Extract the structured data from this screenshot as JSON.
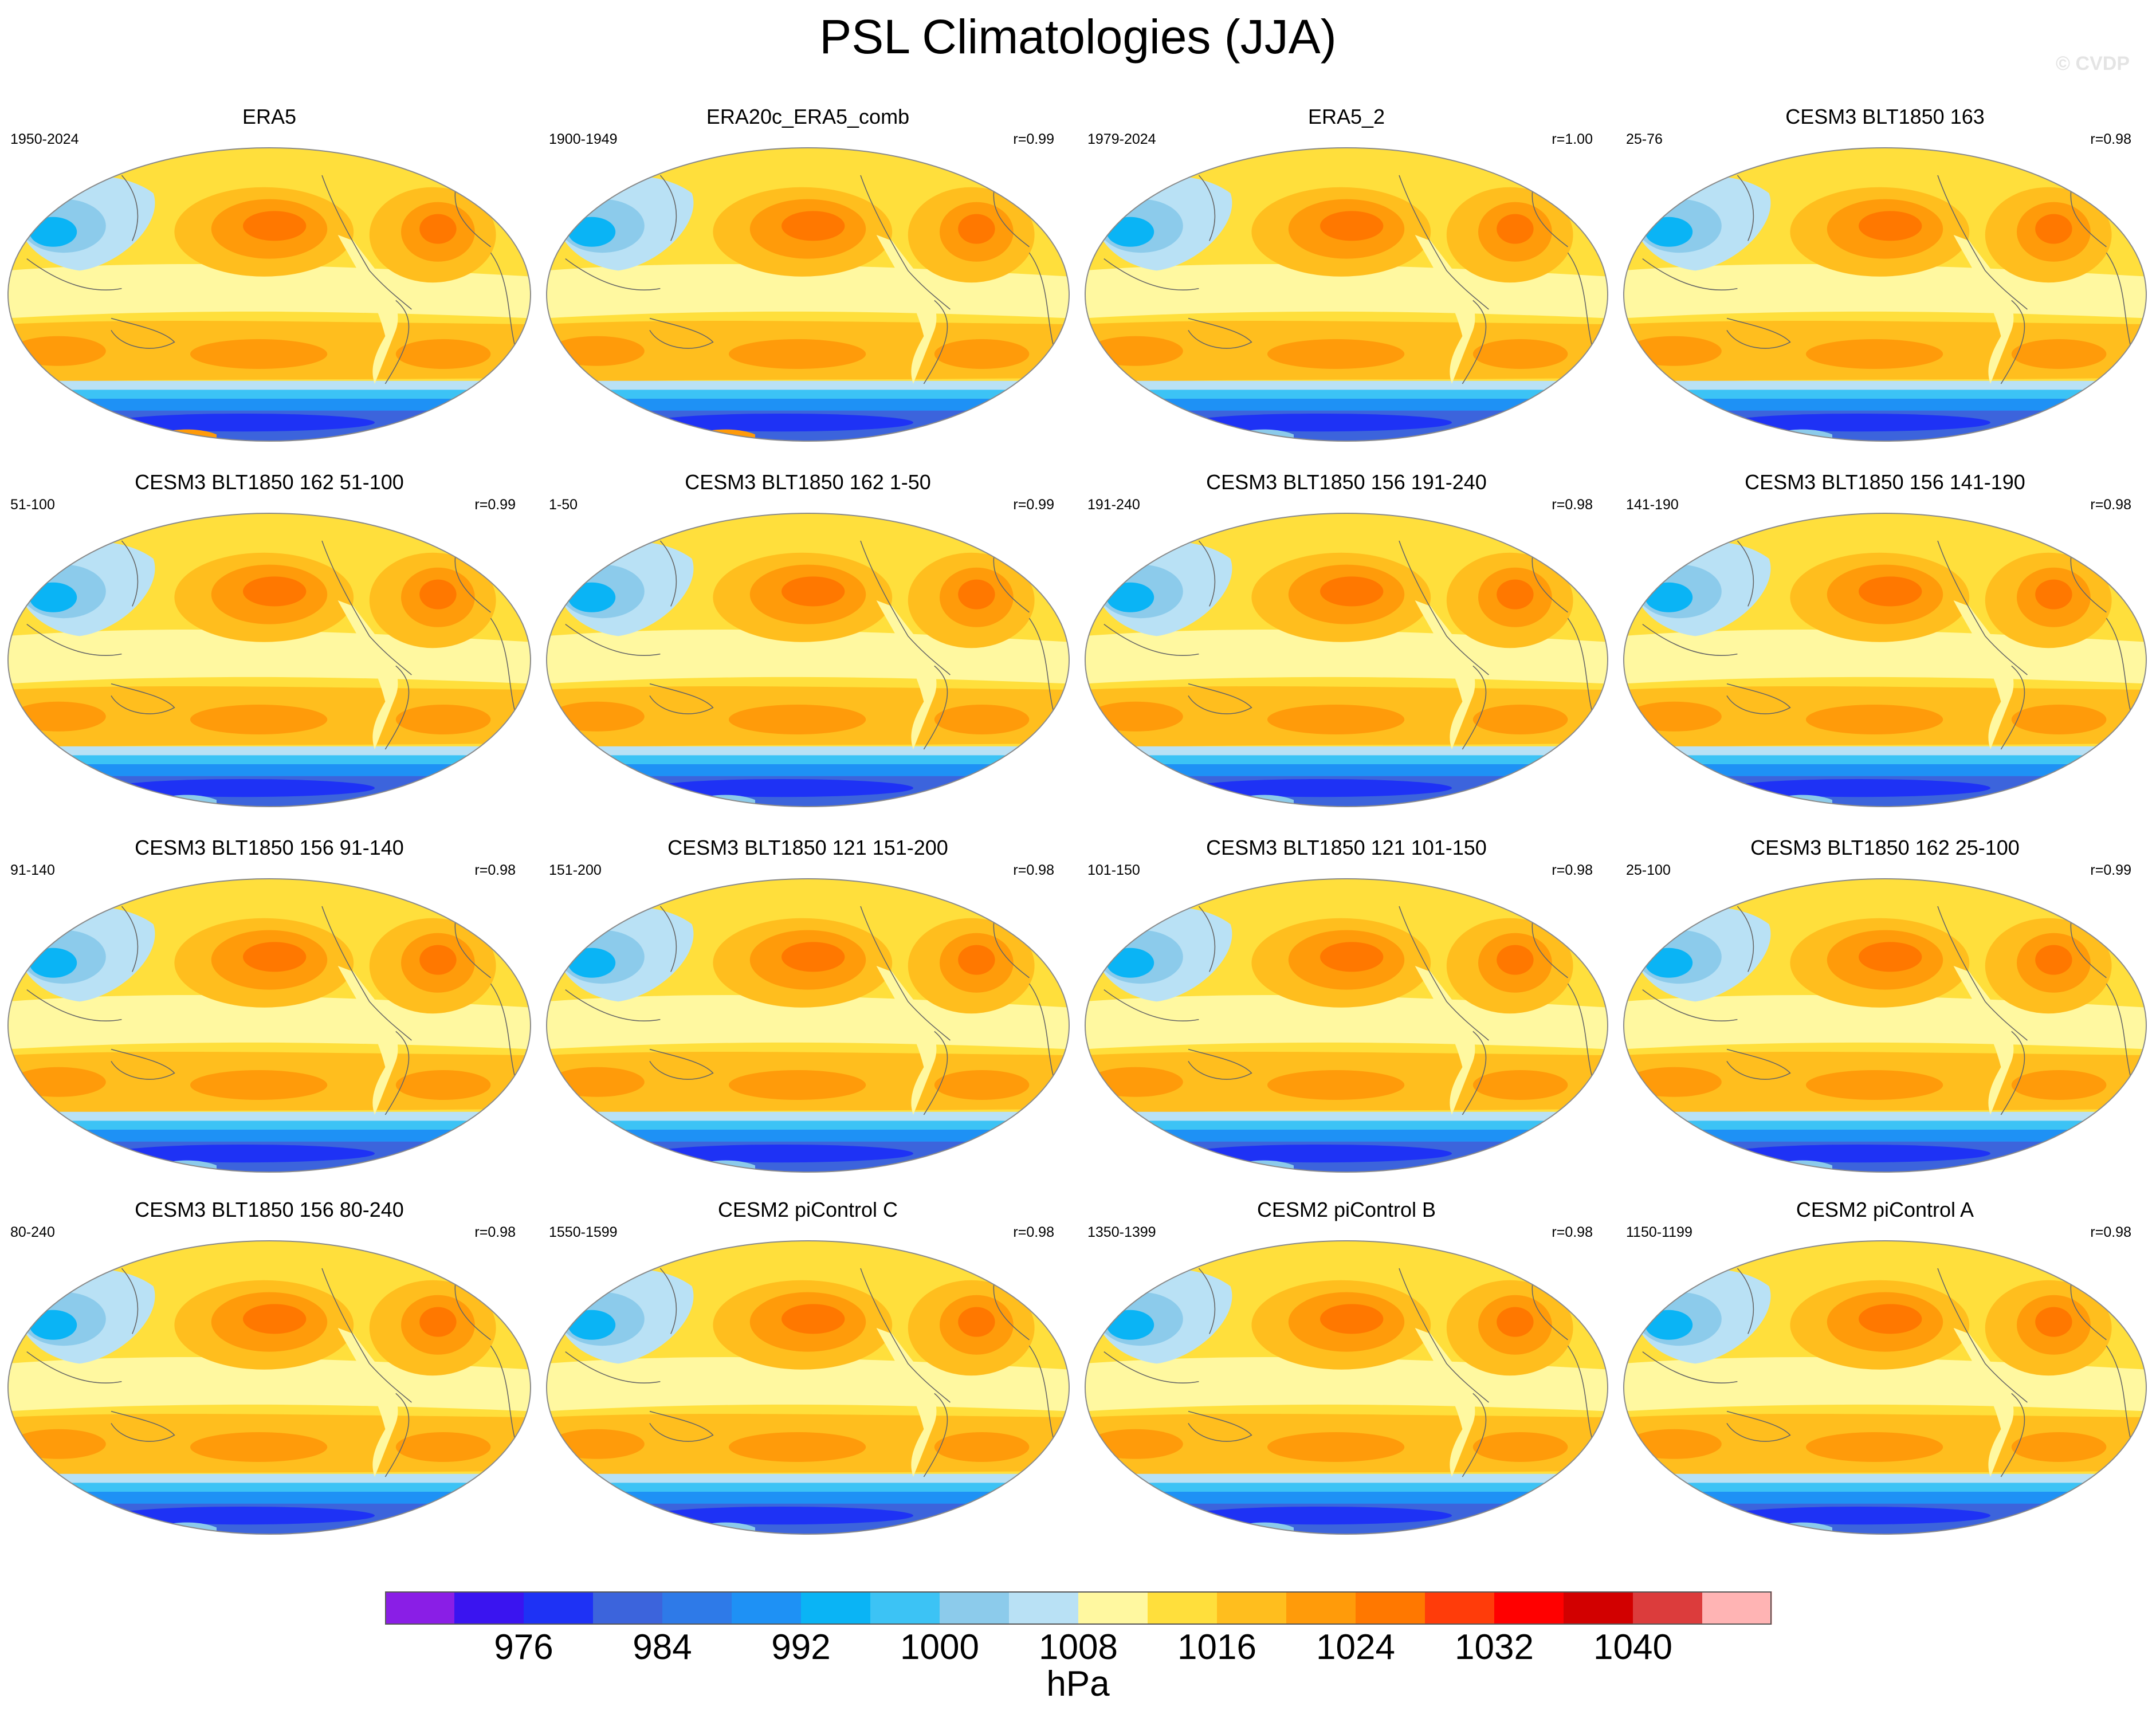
{
  "figure": {
    "title": "PSL Climatologies (JJA)",
    "watermark": "© CVDP",
    "units": "hPa",
    "season": "JJA",
    "variable": "PSL"
  },
  "colorbar": {
    "colors": [
      "#8a1ee6",
      "#3a14f0",
      "#1e32f5",
      "#3c64dc",
      "#2e7ae8",
      "#1e91f5",
      "#0ab4f5",
      "#3cc3f5",
      "#8ccbeb",
      "#b9e1f5",
      "#fff8a0",
      "#ffdf3c",
      "#ffbe1e",
      "#ff9b0a",
      "#ff7800",
      "#ff3c0a",
      "#ff0000",
      "#d20000",
      "#dc3c3c",
      "#ffb4b4"
    ],
    "levels": [
      972,
      976,
      980,
      984,
      988,
      992,
      996,
      1000,
      1004,
      1008,
      1012,
      1016,
      1020,
      1024,
      1028,
      1032,
      1036,
      1040,
      1044
    ],
    "tick_labels": [
      "976",
      "984",
      "992",
      "1000",
      "1008",
      "1016",
      "1024",
      "1032",
      "1040"
    ],
    "tick_values": [
      976,
      984,
      992,
      1000,
      1008,
      1016,
      1024,
      1032,
      1040
    ]
  },
  "panels": [
    {
      "title": "ERA5",
      "years": "1950-2024",
      "corr": ""
    },
    {
      "title": "ERA20c_ERA5_comb",
      "years": "1900-1949",
      "corr": "r=0.99"
    },
    {
      "title": "ERA5_2",
      "years": "1979-2024",
      "corr": "r=1.00"
    },
    {
      "title": "CESM3 BLT1850 163",
      "years": "25-76",
      "corr": "r=0.98"
    },
    {
      "title": "CESM3 BLT1850 162 51-100",
      "years": "51-100",
      "corr": "r=0.99"
    },
    {
      "title": "CESM3 BLT1850 162 1-50",
      "years": "1-50",
      "corr": "r=0.99"
    },
    {
      "title": "CESM3 BLT1850 156 191-240",
      "years": "191-240",
      "corr": "r=0.98"
    },
    {
      "title": "CESM3 BLT1850 156 141-190",
      "years": "141-190",
      "corr": "r=0.98"
    },
    {
      "title": "CESM3 BLT1850 156 91-140",
      "years": "91-140",
      "corr": "r=0.98"
    },
    {
      "title": "CESM3 BLT1850 121 151-200",
      "years": "151-200",
      "corr": "r=0.98"
    },
    {
      "title": "CESM3 BLT1850 121 101-150",
      "years": "101-150",
      "corr": "r=0.98"
    },
    {
      "title": "CESM3 BLT1850 162 25-100",
      "years": "25-100",
      "corr": "r=0.99"
    },
    {
      "title": "CESM3 BLT1850 156 80-240",
      "years": "80-240",
      "corr": "r=0.98"
    },
    {
      "title": "CESM2 piControl C",
      "years": "1550-1599",
      "corr": "r=0.98"
    },
    {
      "title": "CESM2 piControl B",
      "years": "1350-1399",
      "corr": "r=0.98"
    },
    {
      "title": "CESM2 piControl A",
      "years": "1150-1199",
      "corr": "r=0.98"
    }
  ]
}
